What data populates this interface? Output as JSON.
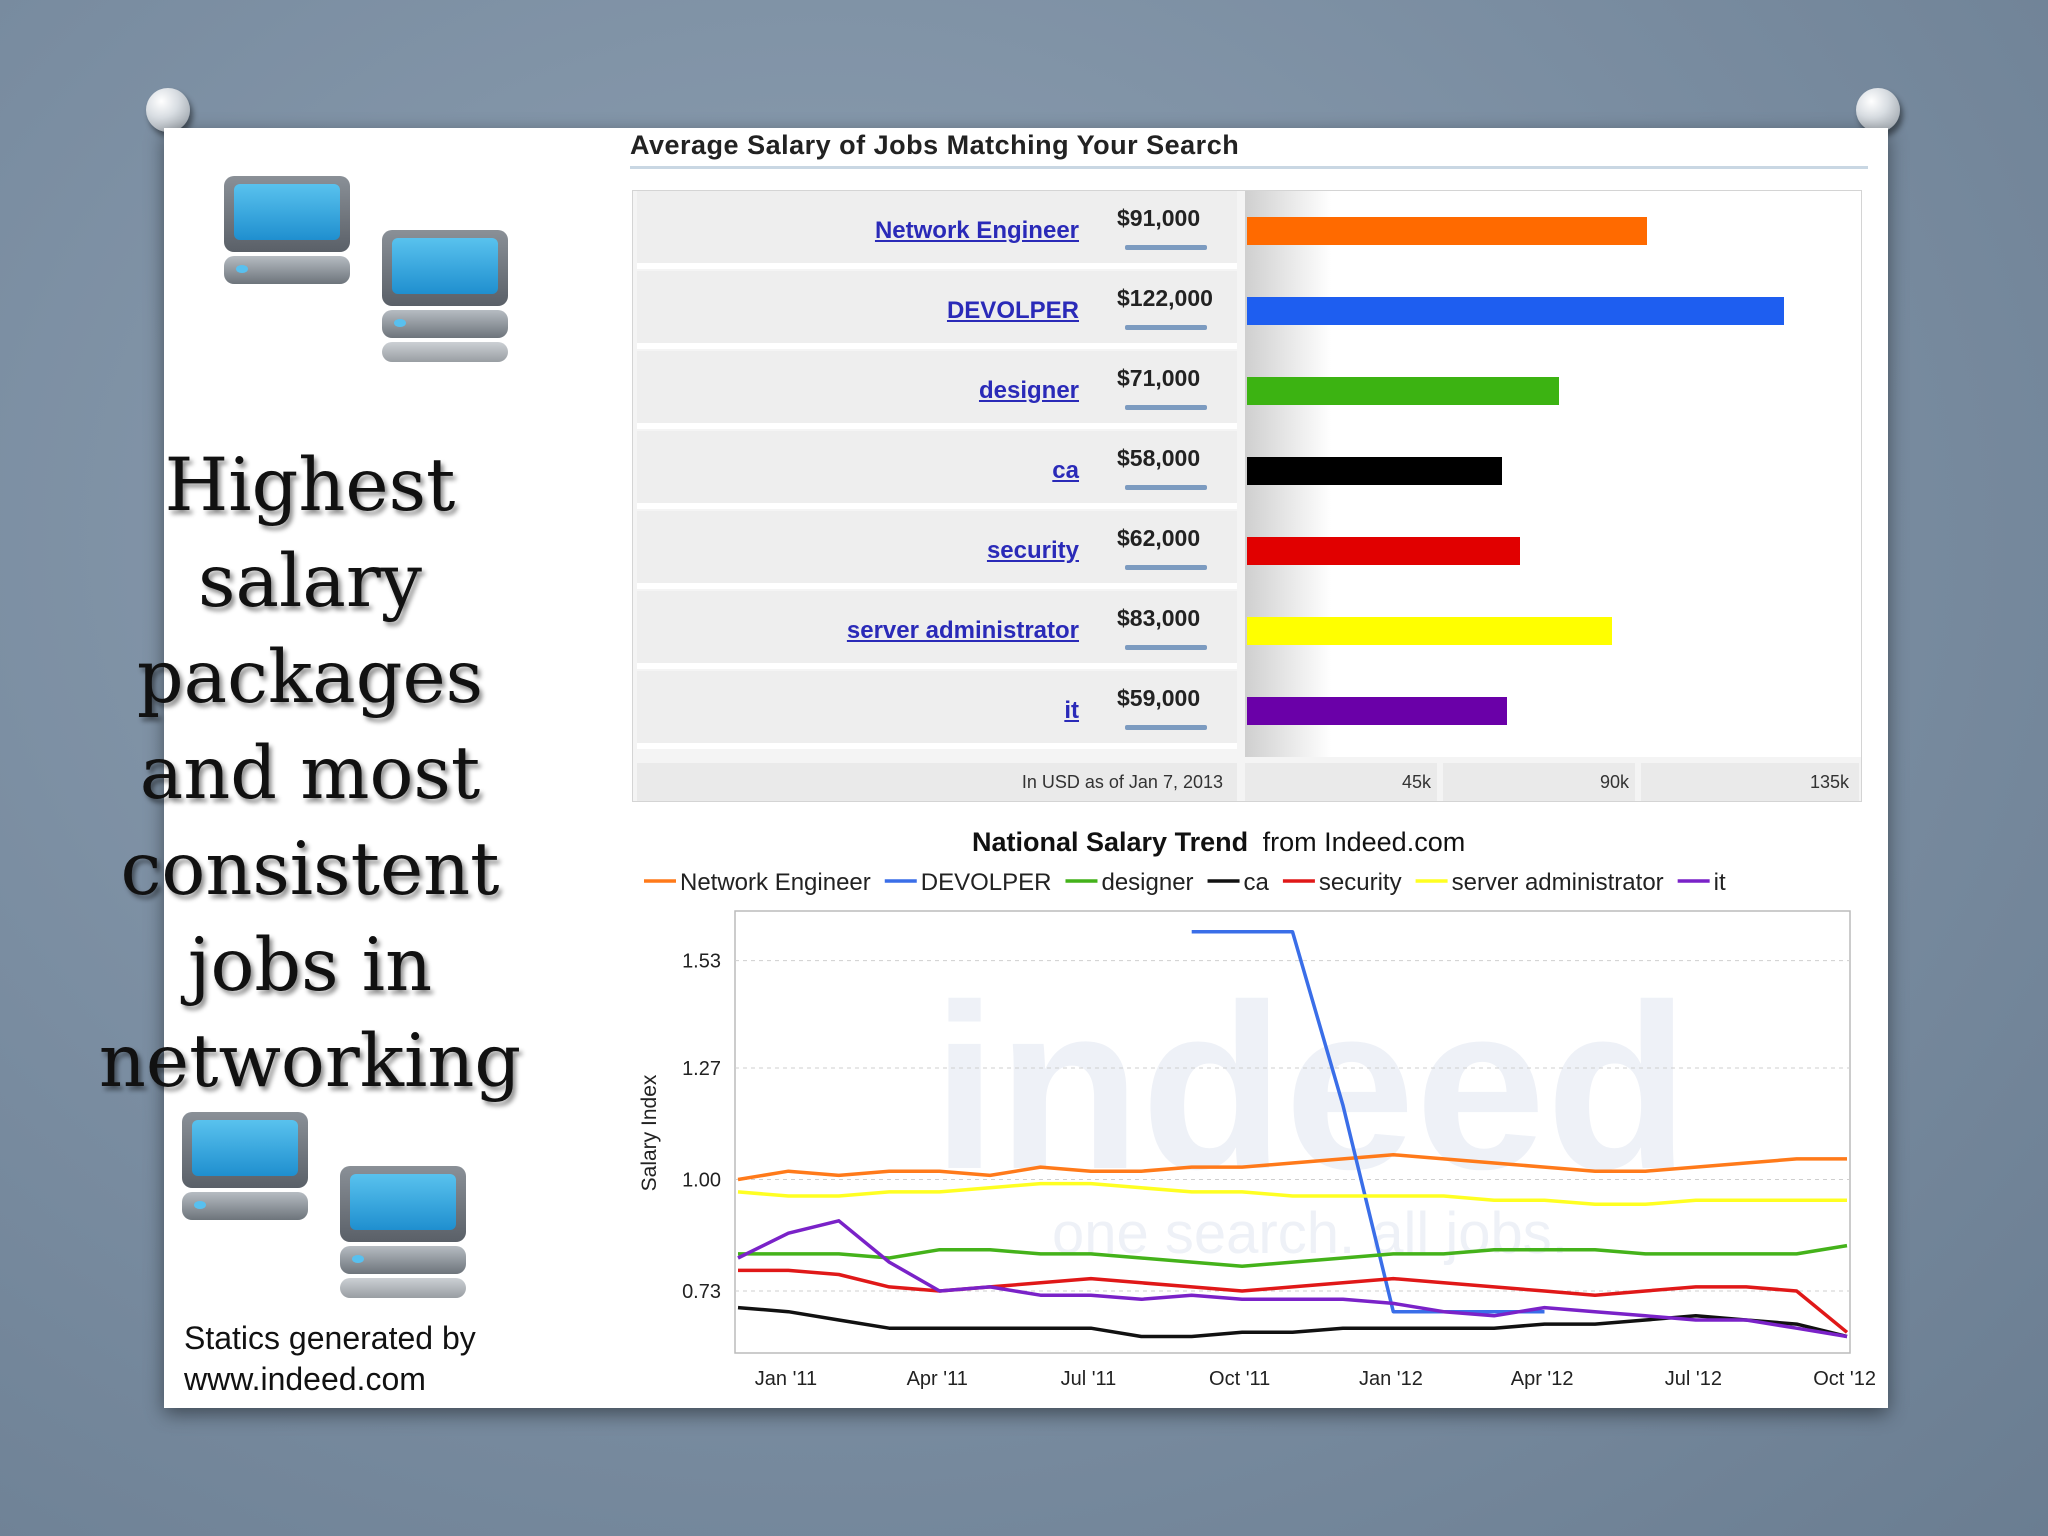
{
  "headline_lines": [
    "Highest",
    "salary",
    "packages",
    "and most",
    "consistent",
    "jobs in",
    "networking"
  ],
  "credit_lines": [
    "Statics generated by",
    "www.indeed.com"
  ],
  "chart_data": [
    {
      "type": "bar",
      "title": "Average Salary of Jobs Matching Your Search",
      "categories": [
        "Network Engineer",
        "DEVOLPER",
        "designer",
        "ca",
        "security",
        "server administrator",
        "it"
      ],
      "values": [
        91000,
        122000,
        71000,
        58000,
        62000,
        83000,
        59000
      ],
      "value_labels": [
        "$91,000",
        "$122,000",
        "$71,000",
        "$58,000",
        "$62,000",
        "$83,000",
        "$59,000"
      ],
      "colors": [
        "#ff6a00",
        "#1e5ef0",
        "#3cb312",
        "#000000",
        "#e10000",
        "#ffff00",
        "#6a00a8"
      ],
      "xlim": [
        0,
        135000
      ],
      "tick_labels": [
        "45k",
        "90k",
        "135k"
      ],
      "note": "In USD as of Jan 7, 2013"
    },
    {
      "type": "line",
      "title_bold": "National Salary Trend",
      "title_rest": "from Indeed.com",
      "ylabel": "Salary Index",
      "x_ticks": [
        "Jan '11",
        "Apr '11",
        "Jul '11",
        "Oct '11",
        "Jan '12",
        "Apr '12",
        "Jul '12",
        "Oct '12"
      ],
      "y_ticks": [
        0.73,
        1.0,
        1.27,
        1.53
      ],
      "ylim": [
        0.58,
        1.65
      ],
      "watermark": [
        "indeed",
        "one search. all jobs."
      ],
      "series": [
        {
          "name": "Network Engineer",
          "color": "#ff7a1a",
          "x": [
            0,
            1,
            2,
            3,
            4,
            5,
            6,
            7,
            8,
            9,
            10,
            11,
            12,
            13,
            14,
            15,
            16,
            17,
            18,
            19,
            20,
            21,
            22
          ],
          "y": [
            1.0,
            1.02,
            1.01,
            1.02,
            1.02,
            1.01,
            1.03,
            1.02,
            1.02,
            1.03,
            1.03,
            1.04,
            1.05,
            1.06,
            1.05,
            1.04,
            1.03,
            1.02,
            1.02,
            1.03,
            1.04,
            1.05,
            1.05
          ]
        },
        {
          "name": "DEVOLPER",
          "color": "#3a6ee8",
          "x": [
            9,
            10,
            11,
            12,
            13,
            14,
            15,
            16
          ],
          "y": [
            1.6,
            1.6,
            1.6,
            1.18,
            0.68,
            0.68,
            0.68,
            0.68
          ]
        },
        {
          "name": "designer",
          "color": "#44b21a",
          "x": [
            0,
            1,
            2,
            3,
            4,
            5,
            6,
            7,
            8,
            9,
            10,
            11,
            12,
            13,
            14,
            15,
            16,
            17,
            18,
            19,
            20,
            21,
            22
          ],
          "y": [
            0.82,
            0.82,
            0.82,
            0.81,
            0.83,
            0.83,
            0.82,
            0.82,
            0.81,
            0.8,
            0.79,
            0.8,
            0.81,
            0.82,
            0.82,
            0.83,
            0.83,
            0.83,
            0.82,
            0.82,
            0.82,
            0.82,
            0.84
          ]
        },
        {
          "name": "ca",
          "color": "#111111",
          "x": [
            0,
            1,
            2,
            3,
            4,
            5,
            6,
            7,
            8,
            9,
            10,
            11,
            12,
            13,
            14,
            15,
            16,
            17,
            18,
            19,
            20,
            21,
            22
          ],
          "y": [
            0.69,
            0.68,
            0.66,
            0.64,
            0.64,
            0.64,
            0.64,
            0.64,
            0.62,
            0.62,
            0.63,
            0.63,
            0.64,
            0.64,
            0.64,
            0.64,
            0.65,
            0.65,
            0.66,
            0.67,
            0.66,
            0.65,
            0.62
          ]
        },
        {
          "name": "security",
          "color": "#e01818",
          "x": [
            0,
            1,
            2,
            3,
            4,
            5,
            6,
            7,
            8,
            9,
            10,
            11,
            12,
            13,
            14,
            15,
            16,
            17,
            18,
            19,
            20,
            21,
            22
          ],
          "y": [
            0.78,
            0.78,
            0.77,
            0.74,
            0.73,
            0.74,
            0.75,
            0.76,
            0.75,
            0.74,
            0.73,
            0.74,
            0.75,
            0.76,
            0.75,
            0.74,
            0.73,
            0.72,
            0.73,
            0.74,
            0.74,
            0.73,
            0.63
          ]
        },
        {
          "name": "server administrator",
          "color": "#ffff22",
          "x": [
            0,
            1,
            2,
            3,
            4,
            5,
            6,
            7,
            8,
            9,
            10,
            11,
            12,
            13,
            14,
            15,
            16,
            17,
            18,
            19,
            20,
            21,
            22
          ],
          "y": [
            0.97,
            0.96,
            0.96,
            0.97,
            0.97,
            0.98,
            0.99,
            0.99,
            0.98,
            0.97,
            0.97,
            0.96,
            0.96,
            0.96,
            0.96,
            0.95,
            0.95,
            0.94,
            0.94,
            0.95,
            0.95,
            0.95,
            0.95
          ]
        },
        {
          "name": "it",
          "color": "#7a22c8",
          "x": [
            0,
            1,
            2,
            3,
            4,
            5,
            6,
            7,
            8,
            9,
            10,
            11,
            12,
            13,
            14,
            15,
            16,
            17,
            18,
            19,
            20,
            21,
            22
          ],
          "y": [
            0.81,
            0.87,
            0.9,
            0.8,
            0.73,
            0.74,
            0.72,
            0.72,
            0.71,
            0.72,
            0.71,
            0.71,
            0.71,
            0.7,
            0.68,
            0.67,
            0.69,
            0.68,
            0.67,
            0.66,
            0.66,
            0.64,
            0.62
          ]
        }
      ]
    }
  ]
}
